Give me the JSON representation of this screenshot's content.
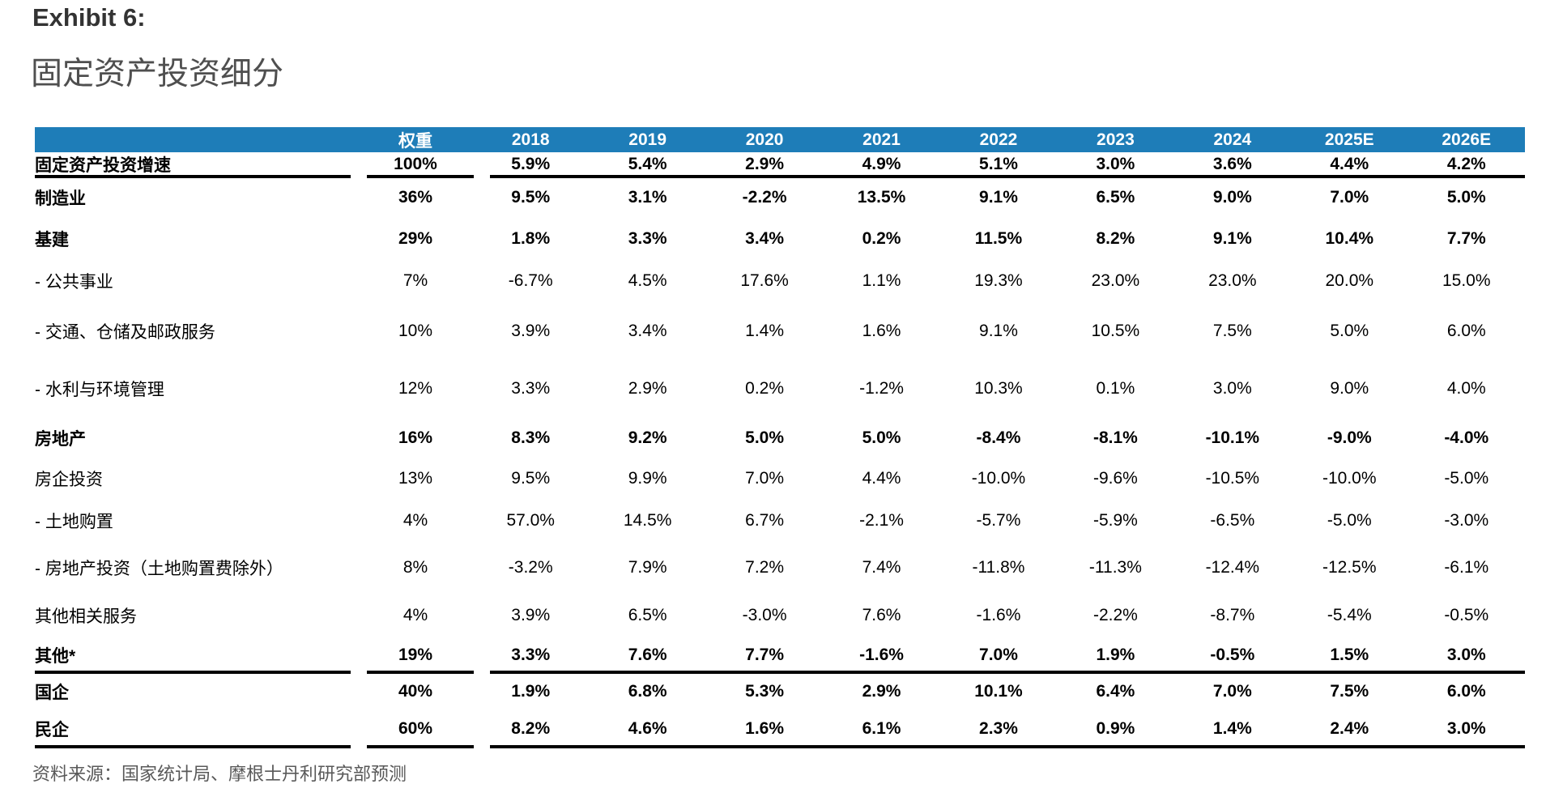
{
  "exhibit": {
    "label": "Exhibit 6:",
    "title": "固定资产投资细分"
  },
  "table": {
    "header": {
      "weight_label": "权重",
      "years": [
        "2018",
        "2019",
        "2020",
        "2021",
        "2022",
        "2023",
        "2024",
        "2025E",
        "2026E"
      ]
    },
    "rows": [
      {
        "label": "固定资产投资增速",
        "bold": true,
        "weight": "100%",
        "values": [
          "5.9%",
          "5.4%",
          "2.9%",
          "4.9%",
          "5.1%",
          "3.0%",
          "3.6%",
          "4.4%",
          "4.2%"
        ],
        "rule_below": true
      },
      {
        "label": "制造业",
        "bold": true,
        "weight": "36%",
        "values": [
          "9.5%",
          "3.1%",
          "-2.2%",
          "13.5%",
          "9.1%",
          "6.5%",
          "9.0%",
          "7.0%",
          "5.0%"
        ],
        "rule_below": false
      },
      {
        "label": "基建",
        "bold": true,
        "weight": "29%",
        "values": [
          "1.8%",
          "3.3%",
          "3.4%",
          "0.2%",
          "11.5%",
          "8.2%",
          "9.1%",
          "10.4%",
          "7.7%"
        ],
        "rule_below": false
      },
      {
        "label": "- 公共事业",
        "bold": false,
        "weight": "7%",
        "values": [
          "-6.7%",
          "4.5%",
          "17.6%",
          "1.1%",
          "19.3%",
          "23.0%",
          "23.0%",
          "20.0%",
          "15.0%"
        ],
        "rule_below": false
      },
      {
        "label": "- 交通、仓储及邮政服务",
        "bold": false,
        "weight": "10%",
        "values": [
          "3.9%",
          "3.4%",
          "1.4%",
          "1.6%",
          "9.1%",
          "10.5%",
          "7.5%",
          "5.0%",
          "6.0%"
        ],
        "rule_below": false
      },
      {
        "label": "- 水利与环境管理",
        "bold": false,
        "weight": "12%",
        "values": [
          "3.3%",
          "2.9%",
          "0.2%",
          "-1.2%",
          "10.3%",
          "0.1%",
          "3.0%",
          "9.0%",
          "4.0%"
        ],
        "rule_below": false
      },
      {
        "label": "房地产",
        "bold": true,
        "weight": "16%",
        "values": [
          "8.3%",
          "9.2%",
          "5.0%",
          "5.0%",
          "-8.4%",
          "-8.1%",
          "-10.1%",
          "-9.0%",
          "-4.0%"
        ],
        "rule_below": false
      },
      {
        "label": "房企投资",
        "bold": false,
        "weight": "13%",
        "values": [
          "9.5%",
          "9.9%",
          "7.0%",
          "4.4%",
          "-10.0%",
          "-9.6%",
          "-10.5%",
          "-10.0%",
          "-5.0%"
        ],
        "rule_below": false
      },
      {
        "label": "- 土地购置",
        "bold": false,
        "weight": "4%",
        "values": [
          "57.0%",
          "14.5%",
          "6.7%",
          "-2.1%",
          "-5.7%",
          "-5.9%",
          "-6.5%",
          "-5.0%",
          "-3.0%"
        ],
        "rule_below": false
      },
      {
        "label": "- 房地产投资（土地购置费除外）",
        "bold": false,
        "weight": "8%",
        "values": [
          "-3.2%",
          "7.9%",
          "7.2%",
          "7.4%",
          "-11.8%",
          "-11.3%",
          "-12.4%",
          "-12.5%",
          "-6.1%"
        ],
        "rule_below": false
      },
      {
        "label": "其他相关服务",
        "bold": false,
        "weight": "4%",
        "values": [
          "3.9%",
          "6.5%",
          "-3.0%",
          "7.6%",
          "-1.6%",
          "-2.2%",
          "-8.7%",
          "-5.4%",
          "-0.5%"
        ],
        "rule_below": false
      },
      {
        "label": "其他*",
        "bold": true,
        "weight": "19%",
        "values": [
          "3.3%",
          "7.6%",
          "7.7%",
          "-1.6%",
          "7.0%",
          "1.9%",
          "-0.5%",
          "1.5%",
          "3.0%"
        ],
        "rule_below": true
      },
      {
        "label": "国企",
        "bold": true,
        "weight": "40%",
        "values": [
          "1.9%",
          "6.8%",
          "5.3%",
          "2.9%",
          "10.1%",
          "6.4%",
          "7.0%",
          "7.5%",
          "6.0%"
        ],
        "rule_below": false
      },
      {
        "label": "民企",
        "bold": true,
        "weight": "60%",
        "values": [
          "8.2%",
          "4.6%",
          "1.6%",
          "6.1%",
          "2.3%",
          "0.9%",
          "1.4%",
          "2.4%",
          "3.0%"
        ],
        "rule_below": true
      }
    ]
  },
  "footer": {
    "source": "资料来源：国家统计局、摩根士丹利研究部预测"
  },
  "colors": {
    "header_bar": "#1E7DB8",
    "rule": "#000000",
    "exhibit_label": "#333333",
    "title": "#4F4F4F",
    "source_text": "#595959"
  }
}
